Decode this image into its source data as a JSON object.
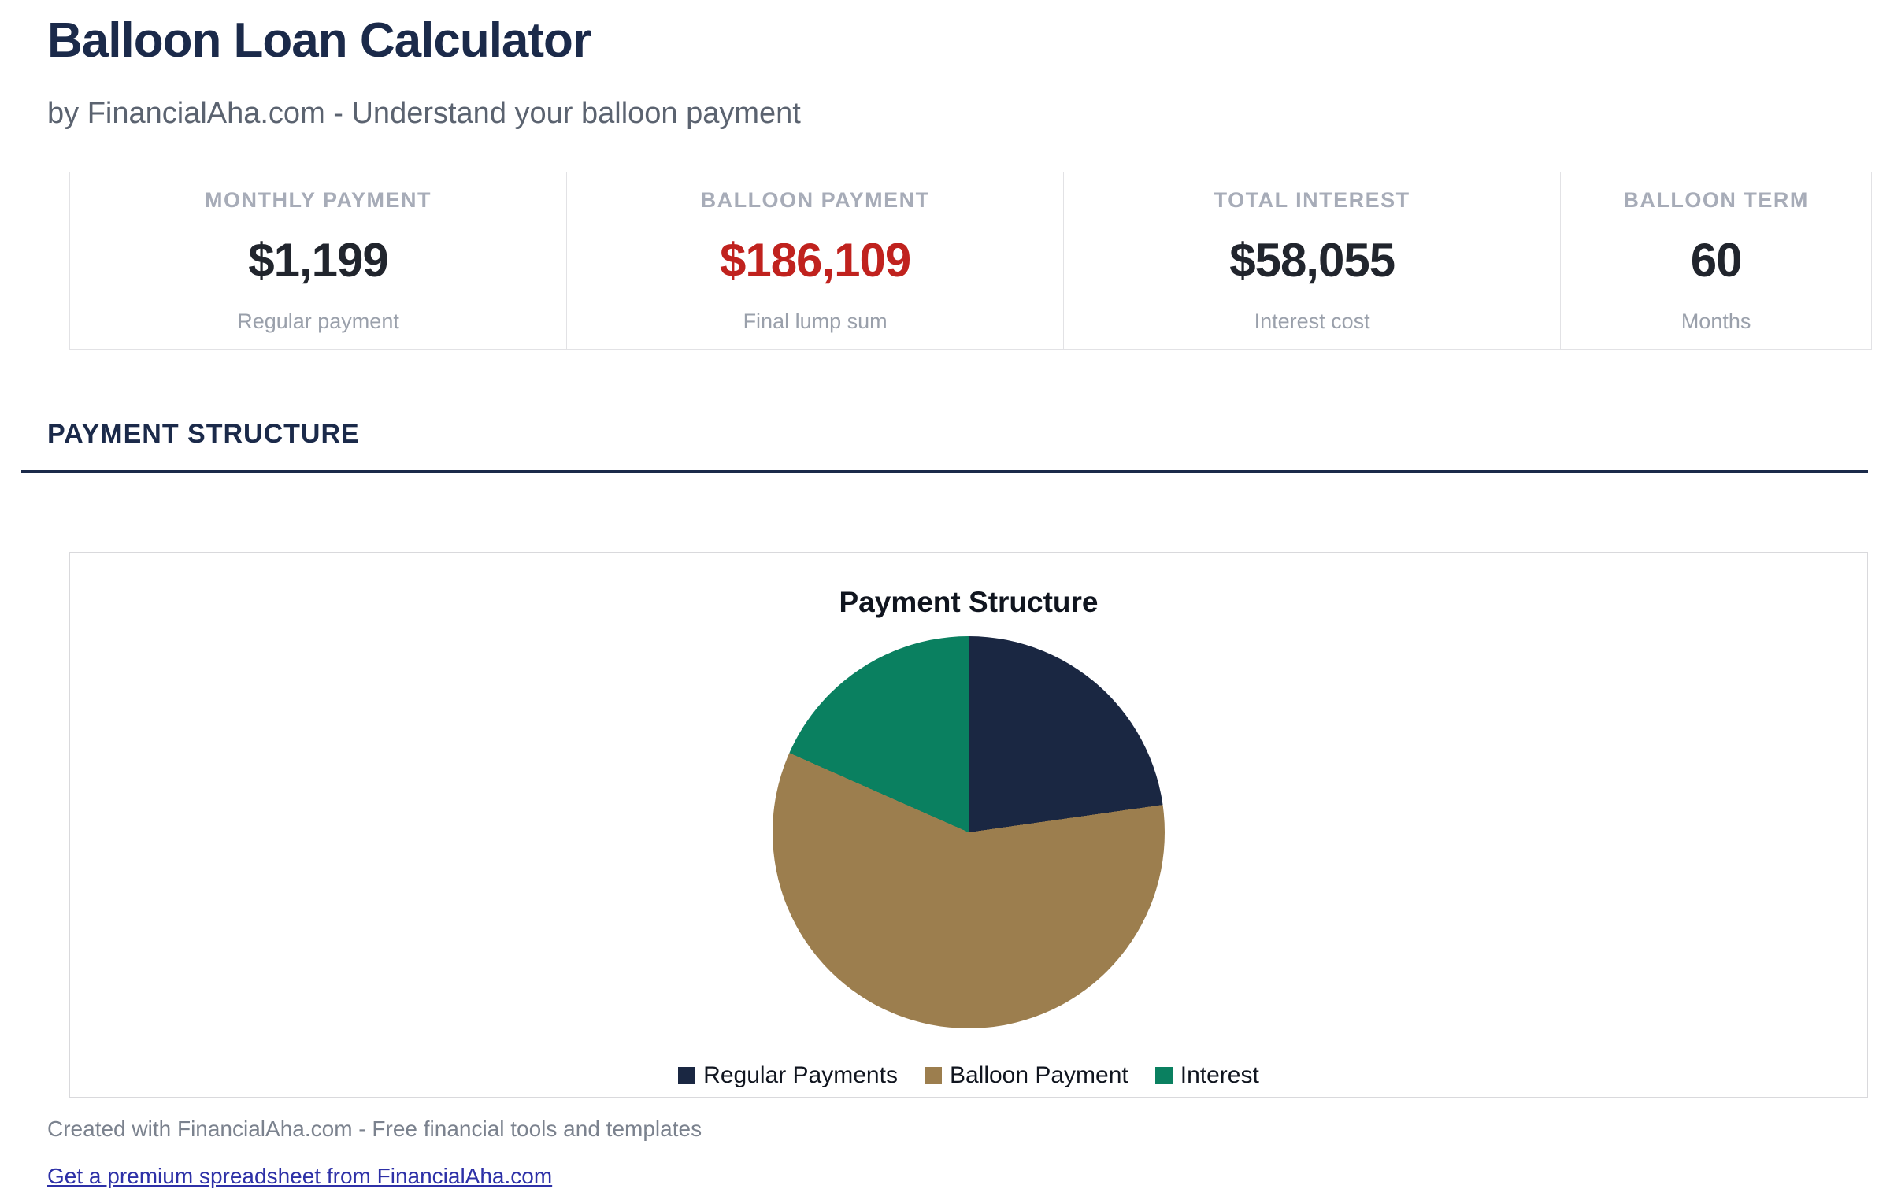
{
  "page": {
    "title": "Balloon Loan Calculator",
    "subtitle": "by FinancialAha.com - Understand your balloon payment",
    "section_header": "PAYMENT STRUCTURE",
    "footer_note": "Created with FinancialAha.com - Free financial tools and templates",
    "footer_link": "Get a premium spreadsheet from FinancialAha.com"
  },
  "stats": [
    {
      "label": "MONTHLY PAYMENT",
      "value": "$1,199",
      "sublabel": "Regular payment",
      "value_color": "#21252d"
    },
    {
      "label": "BALLOON PAYMENT",
      "value": "$186,109",
      "sublabel": "Final lump sum",
      "value_color": "#c0221e"
    },
    {
      "label": "TOTAL INTEREST",
      "value": "$58,055",
      "sublabel": "Interest cost",
      "value_color": "#21252d"
    },
    {
      "label": "BALLOON TERM",
      "value": "60",
      "sublabel": "Months",
      "value_color": "#21252d"
    }
  ],
  "chart_data": {
    "type": "pie",
    "title": "Payment Structure",
    "labels": [
      "Regular Payments",
      "Balloon Payment",
      "Interest"
    ],
    "values": [
      71940,
      186109,
      58055
    ],
    "percentages": [
      22.8,
      58.9,
      18.4
    ],
    "colors": [
      "#1a2742",
      "#9c7e4e",
      "#0a8060"
    ],
    "start_angle_deg": 0,
    "direction": "clockwise",
    "legend_position": "bottom"
  },
  "colors": {
    "accent_navy": "#1b2a4a",
    "value_red": "#c0221e",
    "link_blue": "#2d30a7",
    "card_border": "#e2e2e5",
    "panel_border": "#d9d9dc",
    "muted_text": "#9aa0ab"
  }
}
